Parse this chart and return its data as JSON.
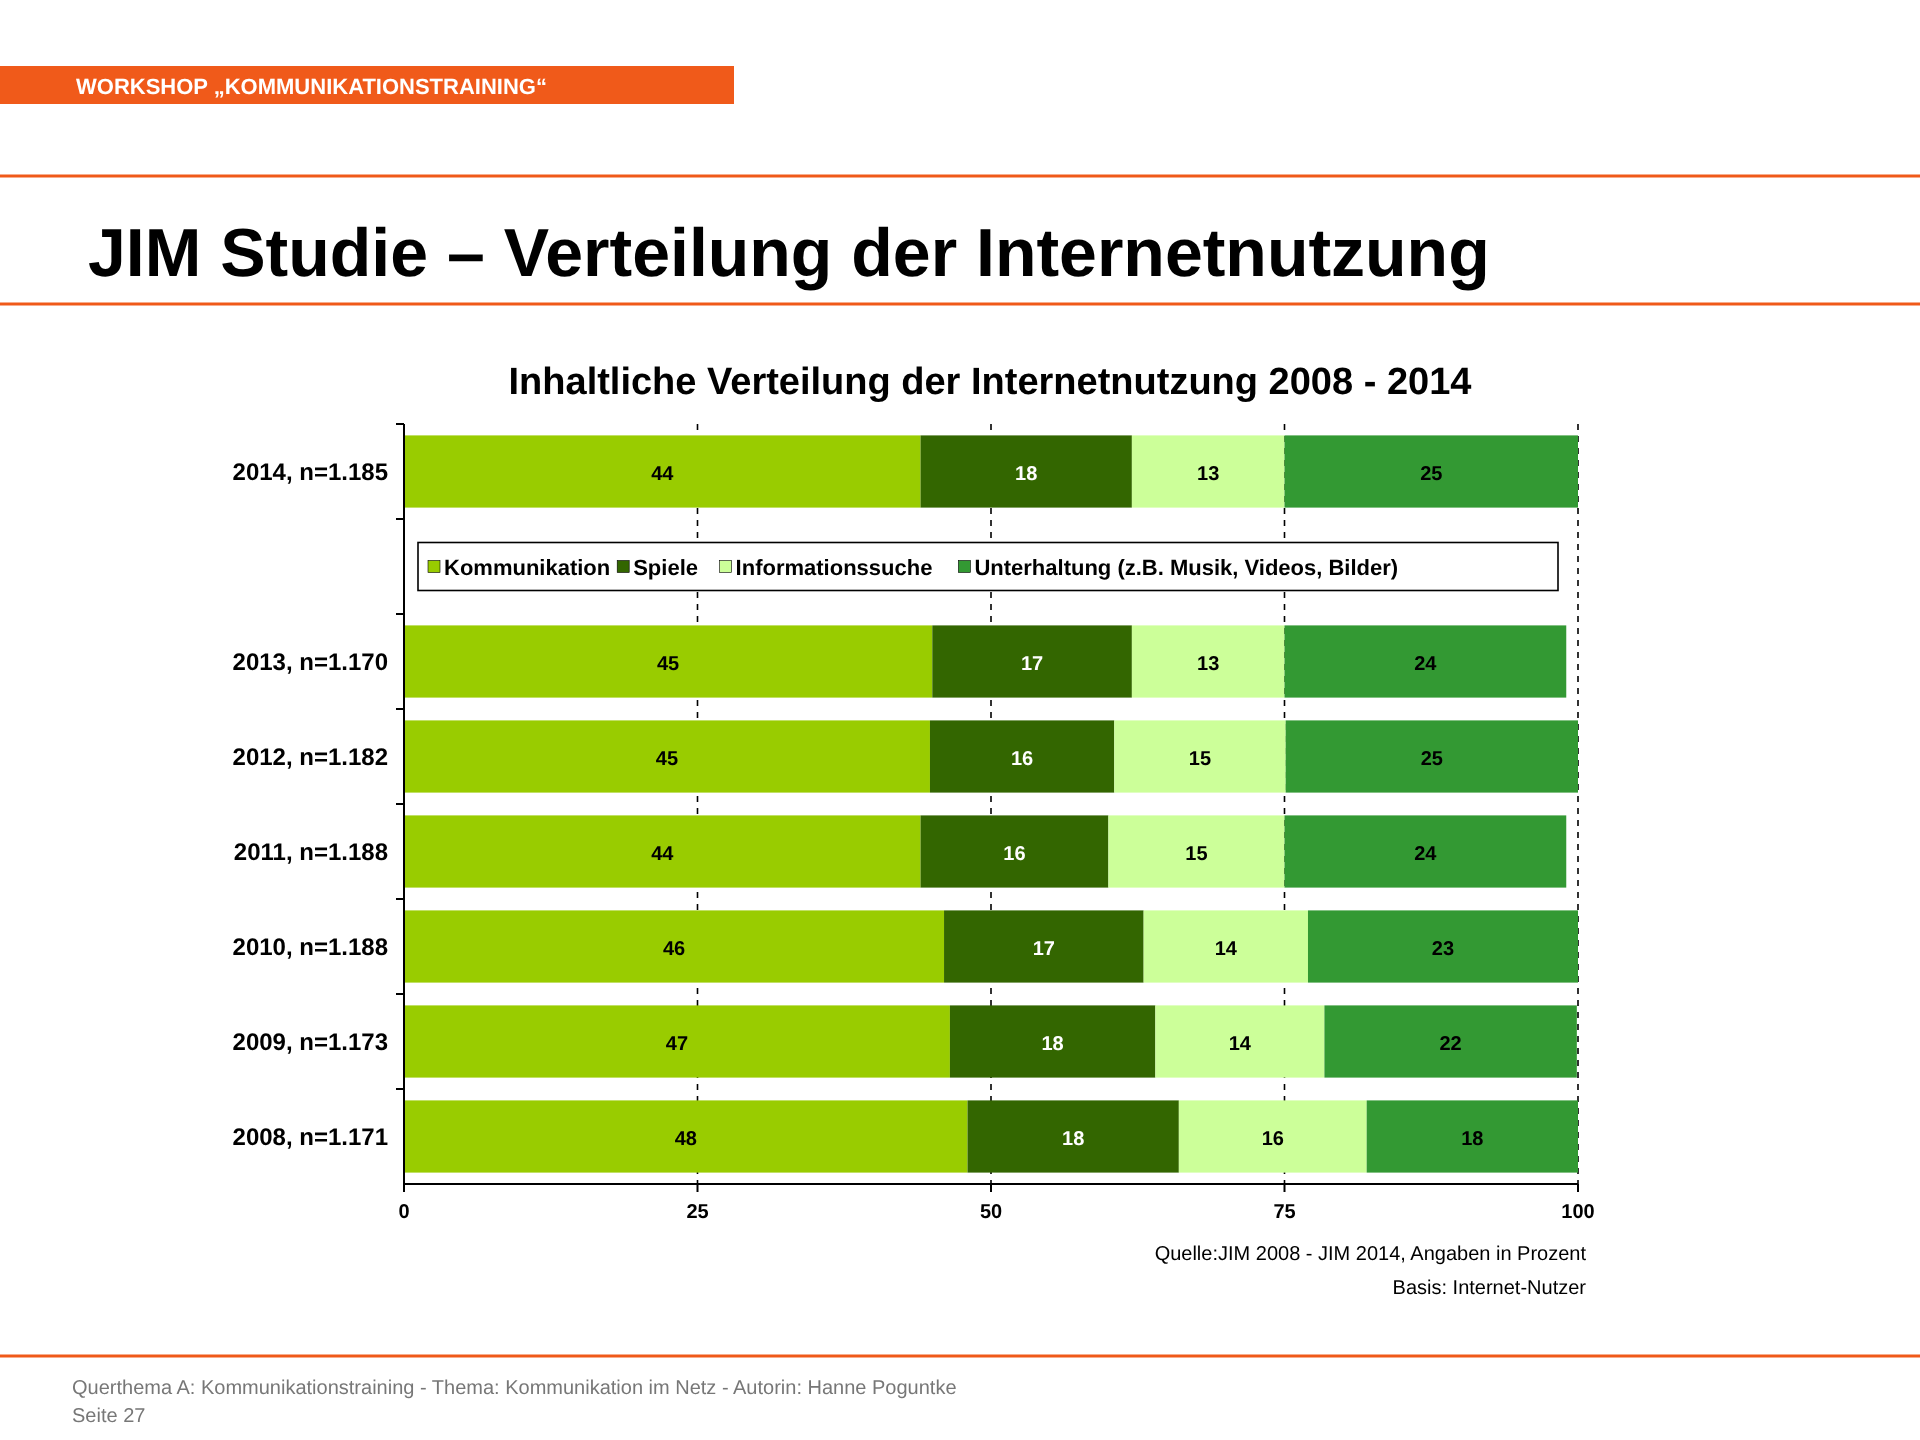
{
  "chart_data": {
    "type": "bar",
    "orientation": "horizontal",
    "stacked": true,
    "title": "JIM Studie – Verteilung der Internetnutzung",
    "subtitle": "Inhaltliche Verteilung der Internetnutzung 2008 - 2014",
    "categories": [
      "2014, n=1.185",
      null,
      "2013, n=1.170",
      "2012, n=1.182",
      "2011, n=1.188",
      "2010, n=1.188",
      "2009, n=1.173",
      "2008, n=1.171"
    ],
    "series": [
      {
        "name": "Kommunikation",
        "color": "#99cc00",
        "values": [
          44,
          null,
          45,
          44.8,
          44,
          46,
          46.5,
          48
        ],
        "value_labels": [
          "44",
          null,
          "45",
          "45",
          "44",
          "46",
          "47",
          "48"
        ]
      },
      {
        "name": "Spiele",
        "color": "#336600",
        "values": [
          18,
          null,
          17,
          15.7,
          16,
          17,
          17.5,
          18
        ],
        "value_labels": [
          "18",
          null,
          "17",
          "16",
          "16",
          "17",
          "18",
          "18"
        ]
      },
      {
        "name": "Informationssuche",
        "color": "#ccff99",
        "values": [
          13,
          null,
          13,
          14.6,
          15,
          14,
          14.4,
          16
        ],
        "value_labels": [
          "13",
          null,
          "13",
          "15",
          "15",
          "14",
          "14",
          "16"
        ]
      },
      {
        "name": "Unterhaltung (z.B. Musik, Videos, Bilder)",
        "color": "#339933",
        "values": [
          25,
          null,
          24,
          24.9,
          24,
          23,
          21.5,
          18
        ],
        "value_labels": [
          "25",
          null,
          "24",
          "25",
          "24",
          "23",
          "22",
          "18"
        ]
      }
    ],
    "xlim": [
      0,
      100
    ],
    "xticks": [
      0,
      25,
      50,
      75,
      100
    ],
    "grid": "x",
    "legend": "top",
    "annotations": [
      "WORKSHOP „KOMMUNIKATIONSTRAINING“",
      "Quelle:JIM 2008 - JIM 2014, Angaben in Prozent",
      "Basis: Internet-Nutzer",
      "Querthema A: Kommunikationstraining - Thema: Kommunikation im Netz - Autorin: Hanne Poguntke",
      "Seite 27"
    ]
  }
}
